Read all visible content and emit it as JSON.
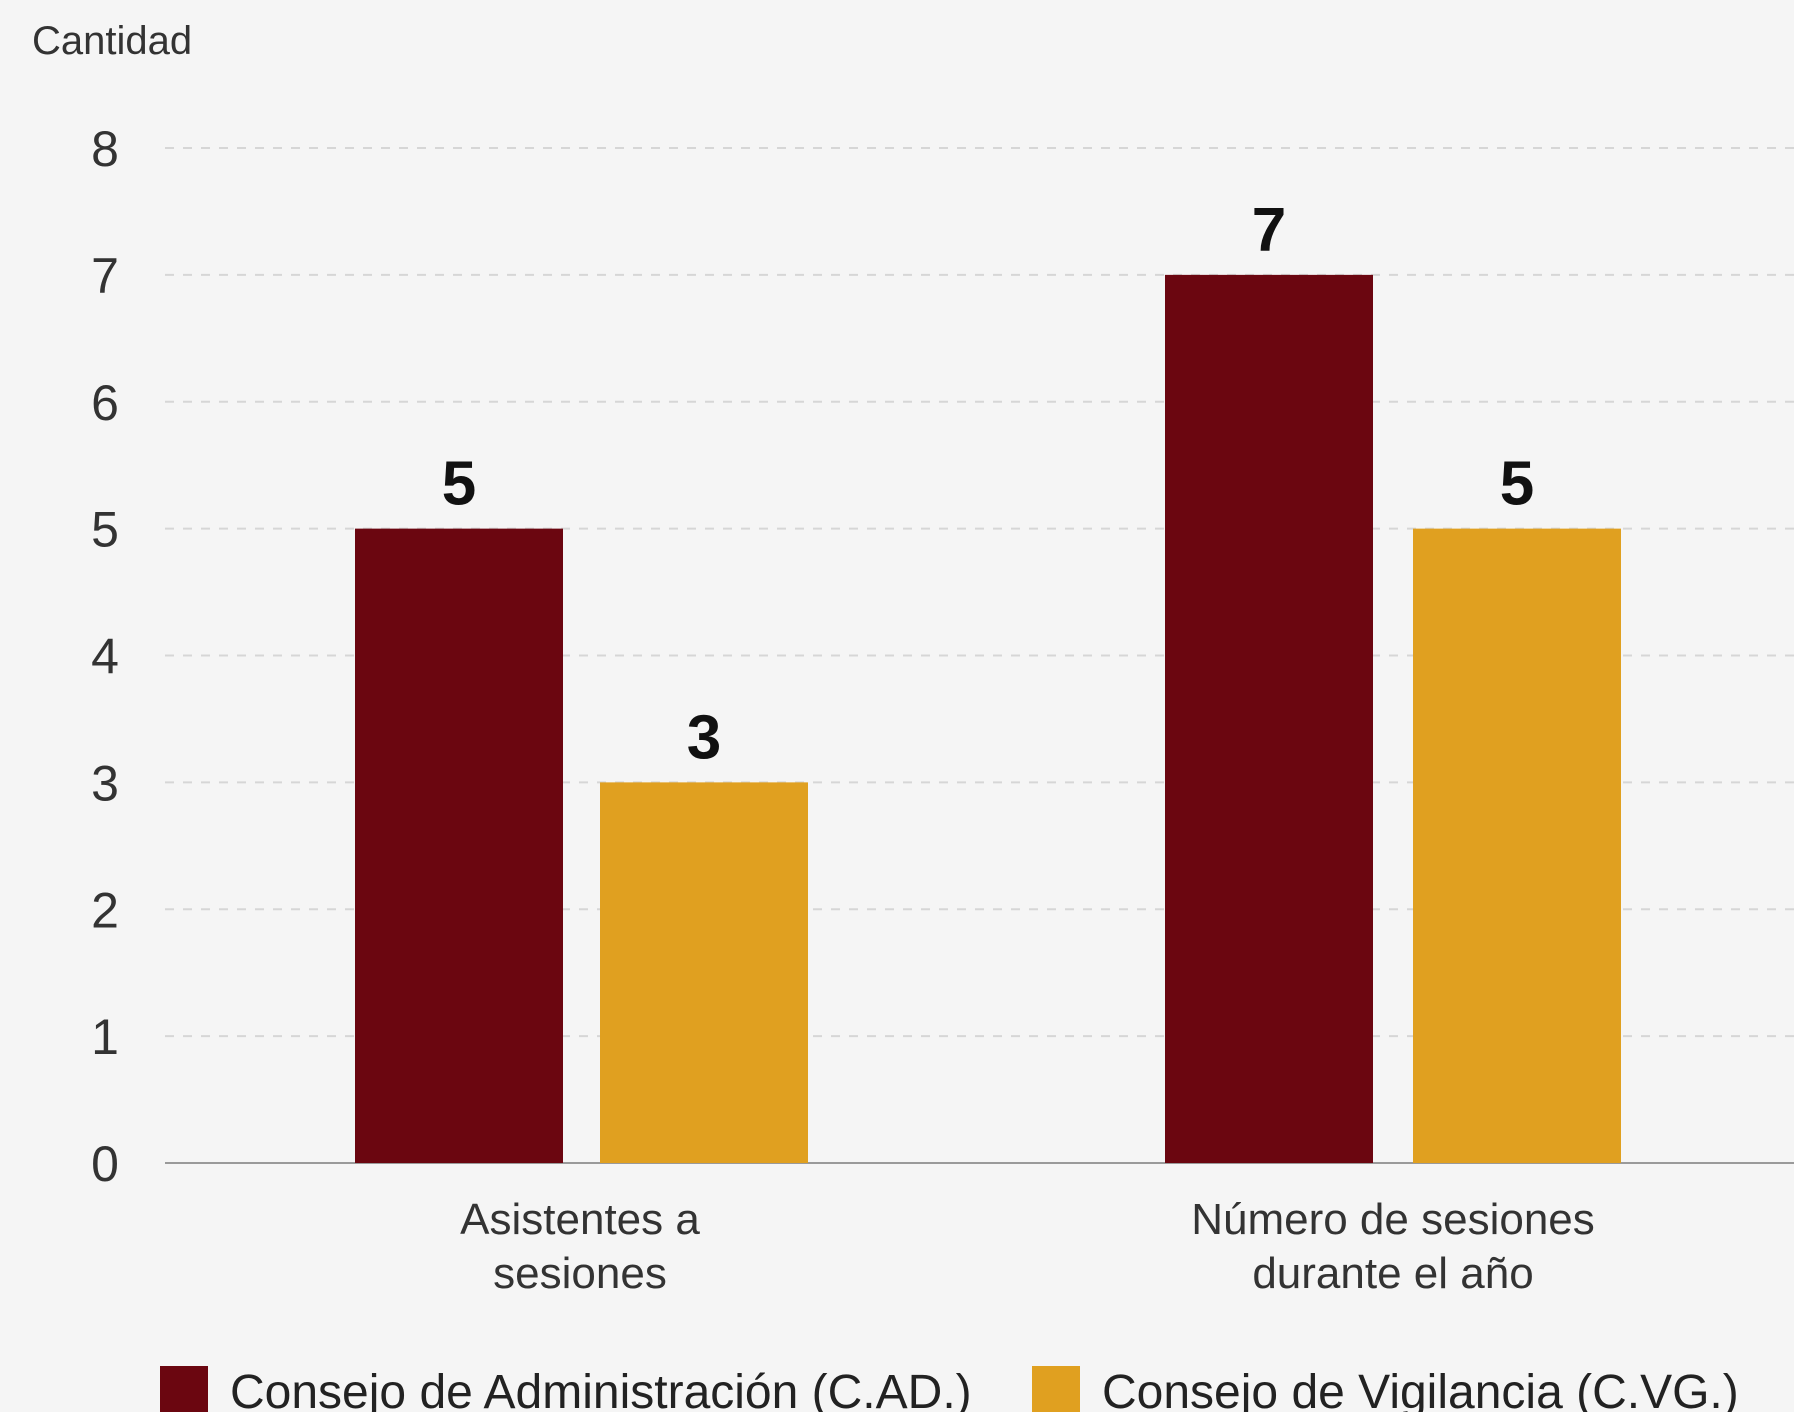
{
  "chart_data": {
    "type": "bar",
    "ylabel": "Cantidad",
    "ylim": [
      0,
      8
    ],
    "yticks": [
      0,
      1,
      2,
      3,
      4,
      5,
      6,
      7,
      8
    ],
    "grid": true,
    "legend_position": "bottom",
    "categories": [
      [
        "Asistentes a",
        "sesiones"
      ],
      [
        "Número de sesiones",
        "durante el año"
      ]
    ],
    "series": [
      {
        "name": "Consejo de Administración (C.AD.)",
        "color": "#6b0610",
        "values": [
          5,
          7
        ]
      },
      {
        "name": "Consejo de Vigilancia (C.VG.)",
        "color": "#e0a020",
        "values": [
          3,
          5
        ]
      }
    ]
  }
}
